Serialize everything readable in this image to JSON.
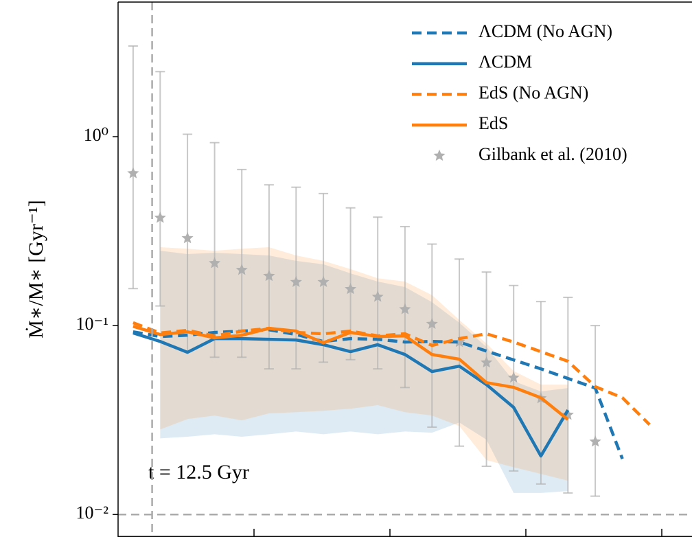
{
  "chart_data": {
    "type": "line",
    "ylabel": "Ṁ∗/M∗ [Gyr⁻¹]",
    "annotation": "t = 12.5 Gyr",
    "log_x": true,
    "log_y": true,
    "xlim": [
      100000000.0,
      1660000000000.0
    ],
    "ylim": [
      0.0076,
      5.16
    ],
    "xticks": [
      1000000000.0,
      10000000000.0,
      100000000000.0,
      1000000000000.0
    ],
    "yticks": [
      {
        "value": 1,
        "label": "10⁰"
      },
      {
        "value": 0.1,
        "label": "10⁻¹"
      },
      {
        "value": 0.01,
        "label": "10⁻²"
      }
    ],
    "vline": 178000000.0,
    "hline": 0.01,
    "legend": "upper right",
    "x": [
      129000000.0,
      204000000.0,
      324000000.0,
      513000000.0,
      813000000.0,
      1290000000.0,
      2040000000.0,
      3240000000.0,
      5130000000.0,
      8130000000.0,
      12900000000.0,
      20400000000.0,
      32400000000.0,
      51300000000.0,
      81300000000.0,
      129000000000.0,
      204000000000.0,
      324000000000.0,
      513000000000.0,
      813000000000.0
    ],
    "series": [
      {
        "name": "ΛCDM (No AGN)",
        "color": "#1f77b4",
        "style": "dashed",
        "values": [
          0.0927,
          0.0875,
          0.0889,
          0.092,
          0.0935,
          0.095,
          0.0897,
          0.0824,
          0.0853,
          0.0846,
          0.0818,
          0.0824,
          0.0818,
          0.0733,
          0.0658,
          0.059,
          0.0525,
          0.0467,
          0.0197,
          null
        ]
      },
      {
        "name": "ΛCDM",
        "color": "#1f77b4",
        "style": "solid",
        "values": [
          0.0914,
          0.0824,
          0.0722,
          0.0853,
          0.0853,
          0.0846,
          0.0839,
          0.0792,
          0.0728,
          0.0792,
          0.0703,
          0.0571,
          0.061,
          0.0487,
          0.0369,
          0.0204,
          0.0357,
          null,
          null,
          null
        ],
        "lower": [
          null,
          0.0253,
          0.0258,
          0.0266,
          0.0258,
          0.0266,
          0.0275,
          0.0266,
          0.0275,
          0.0266,
          0.0275,
          0.0271,
          0.0307,
          0.0249,
          0.013,
          0.013,
          0.0133,
          null,
          null,
          null
        ],
        "upper": [
          null,
          0.249,
          0.239,
          0.243,
          0.239,
          0.235,
          0.22,
          0.211,
          0.189,
          0.171,
          0.16,
          0.133,
          0.1035,
          0.0771,
          0.0508,
          0.0448,
          0.0467,
          null,
          null,
          null
        ]
      },
      {
        "name": "EdS (No AGN)",
        "color": "#ff7f0e",
        "style": "dashed",
        "values": [
          0.1035,
          0.0914,
          0.0944,
          0.0882,
          0.0935,
          0.0967,
          0.092,
          0.0905,
          0.0935,
          0.0882,
          0.0905,
          0.0785,
          0.0853,
          0.0905,
          0.0818,
          0.0728,
          0.0647,
          0.0475,
          0.0415,
          0.0299
        ]
      },
      {
        "name": "EdS",
        "color": "#ff7f0e",
        "style": "solid",
        "values": [
          0.0991,
          0.0897,
          0.0927,
          0.0861,
          0.0889,
          0.0967,
          0.0935,
          0.0811,
          0.092,
          0.0875,
          0.0882,
          0.0703,
          0.0664,
          0.0499,
          0.0471,
          0.0415,
          0.0318,
          null,
          null,
          null
        ],
        "lower": [
          null,
          0.0282,
          0.032,
          0.0334,
          0.0315,
          0.0343,
          0.0348,
          0.0354,
          0.0363,
          0.0379,
          0.0348,
          0.0334,
          0.0294,
          0.0194,
          0.0178,
          0.0164,
          0.0151,
          null,
          null,
          null
        ],
        "upper": [
          null,
          0.26,
          0.255,
          0.249,
          0.255,
          0.26,
          0.235,
          0.22,
          0.199,
          0.178,
          0.171,
          0.145,
          0.107,
          0.0804,
          0.0575,
          0.0487,
          0.0487,
          null,
          null,
          null
        ]
      },
      {
        "name": "Gilbank et al. (2010)",
        "color": "#b0b0b0",
        "style": "errorbar",
        "values": [
          0.64,
          0.372,
          0.29,
          0.214,
          0.197,
          0.183,
          0.17,
          0.17,
          0.156,
          0.142,
          0.122,
          0.102,
          0.0818,
          0.0637,
          0.053,
          0.0412,
          0.0337,
          0.0243,
          null,
          null
        ],
        "lower": [
          0.157,
          0.127,
          0.073,
          0.068,
          0.068,
          0.059,
          0.059,
          0.064,
          0.066,
          0.059,
          0.047,
          0.029,
          0.023,
          0.018,
          0.017,
          0.0145,
          0.013,
          0.0125,
          null,
          null
        ],
        "upper": [
          3.02,
          2.21,
          1.03,
          0.93,
          0.67,
          0.556,
          0.54,
          0.5,
          0.42,
          0.375,
          0.334,
          0.27,
          0.225,
          0.192,
          0.163,
          0.134,
          0.141,
          0.1,
          null,
          null
        ]
      }
    ]
  }
}
